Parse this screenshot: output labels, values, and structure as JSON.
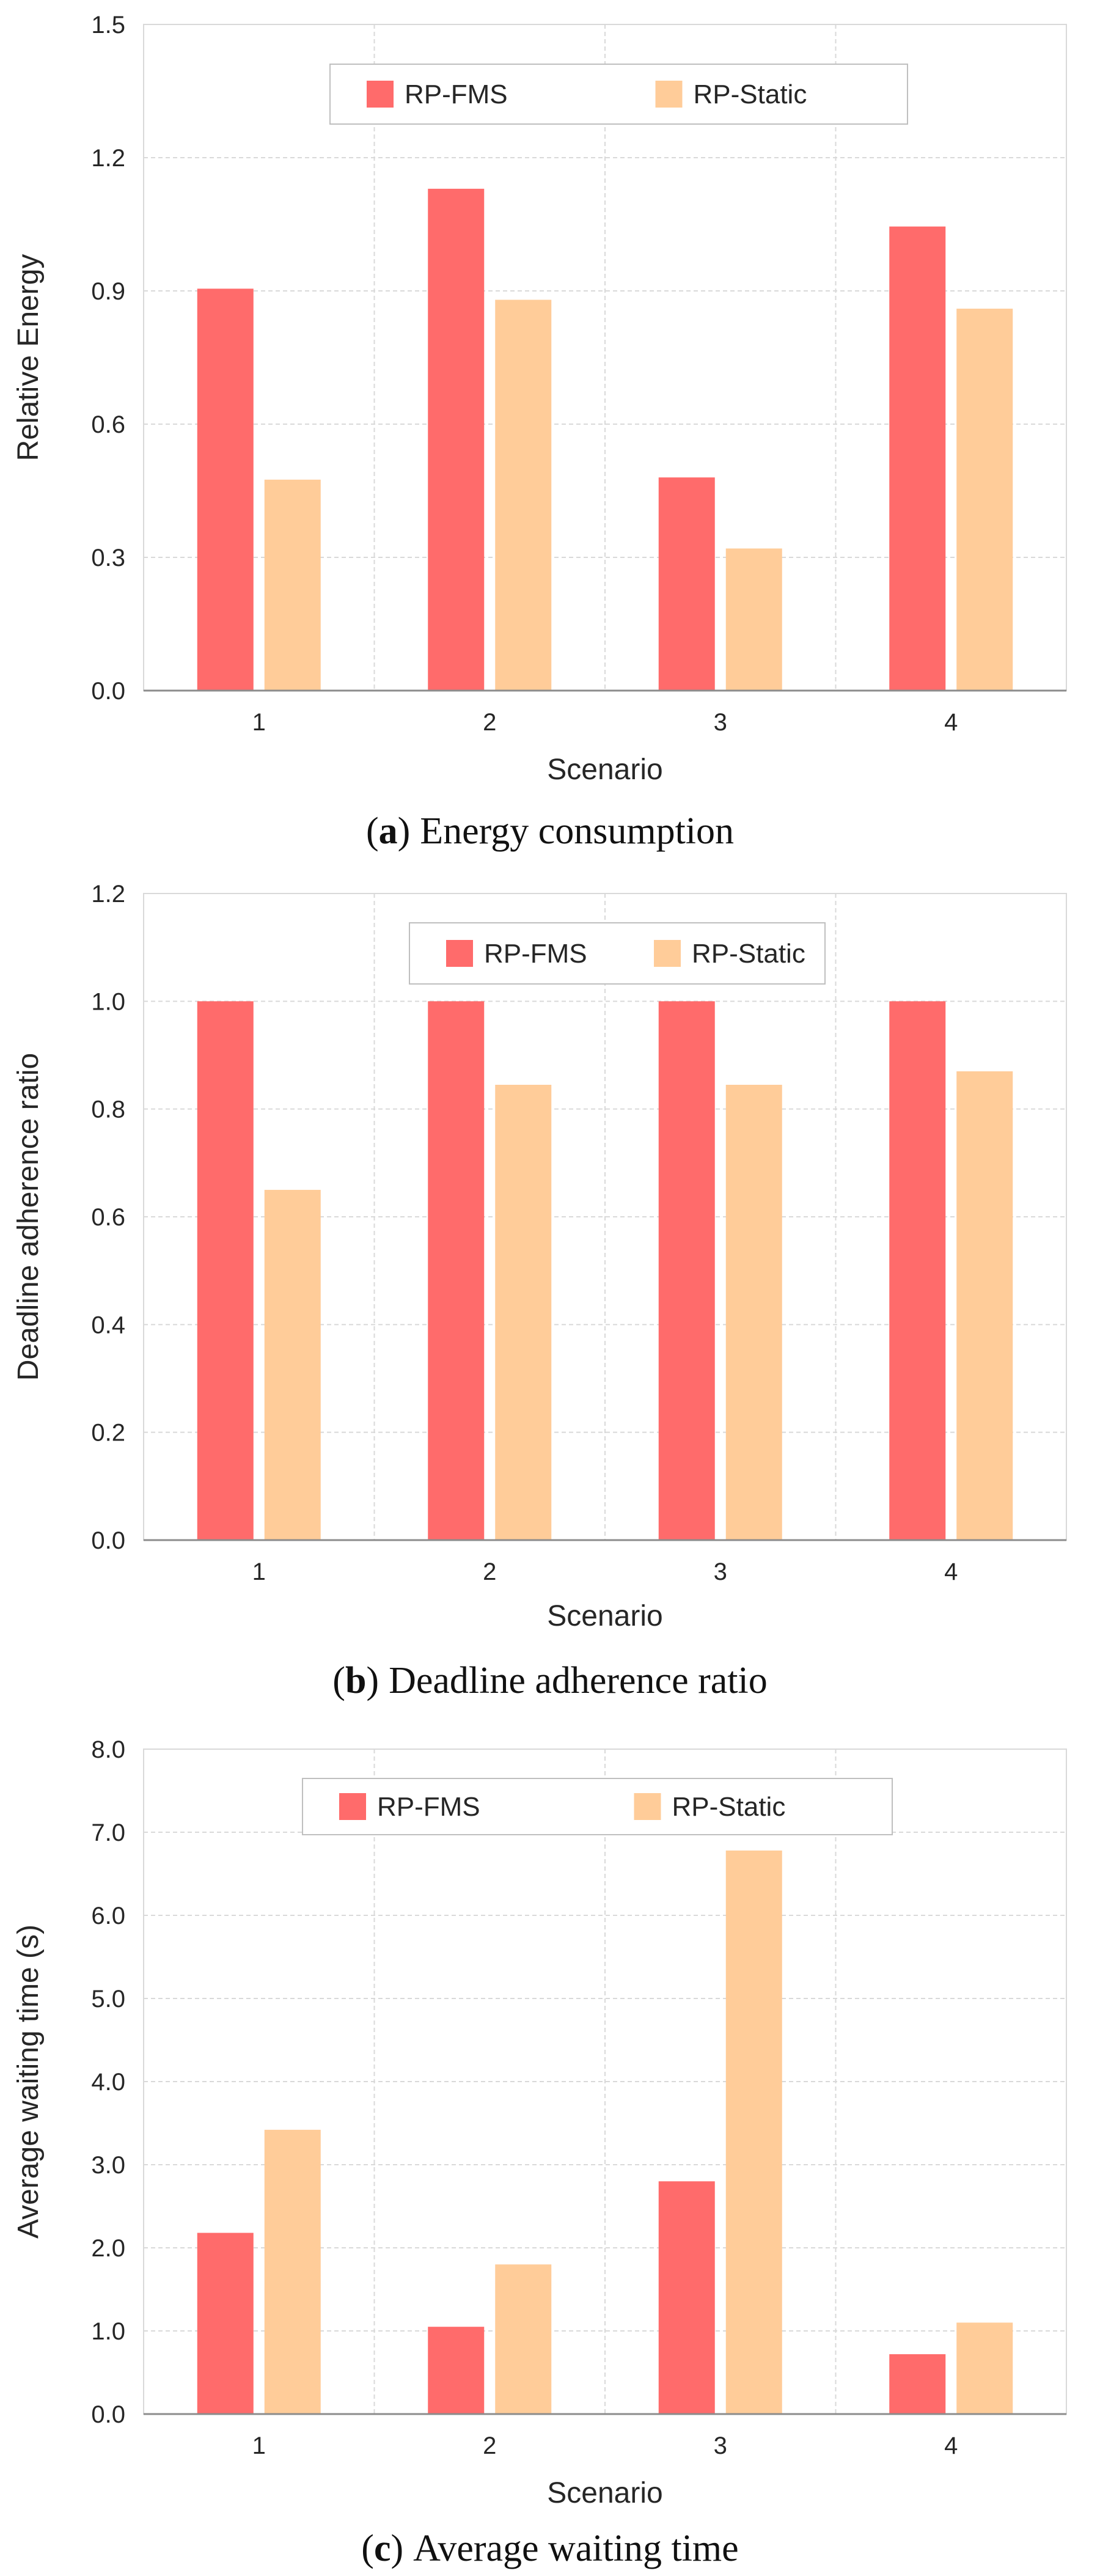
{
  "colors": {
    "rp_fms": "#FF6B6B",
    "rp_static": "#FFCC99",
    "grid": "#D9D9D9",
    "axis": "#8C8C8C",
    "text": "#262626"
  },
  "chart_data": [
    {
      "type": "bar",
      "panel": "a",
      "caption_letter": "a",
      "caption_text": "Energy consumption",
      "caption_open": "(",
      "caption_close": ")",
      "xlabel": "Scenario",
      "ylabel": "Relative Energy",
      "categories": [
        "1",
        "2",
        "3",
        "4"
      ],
      "ylim": [
        0,
        1.5
      ],
      "yticks": [
        "0.0",
        "0.3",
        "0.6",
        "0.9",
        "1.2",
        "1.5"
      ],
      "grid": true,
      "legend_position": "top-center",
      "series": [
        {
          "name": "RP-FMS",
          "color": "#FF6B6B",
          "values": [
            0.905,
            1.13,
            0.48,
            1.045
          ]
        },
        {
          "name": "RP-Static",
          "color": "#FFCC99",
          "values": [
            0.475,
            0.88,
            0.32,
            0.86
          ]
        }
      ]
    },
    {
      "type": "bar",
      "panel": "b",
      "caption_letter": "b",
      "caption_text": "Deadline adherence ratio",
      "caption_open": "(",
      "caption_close": ")",
      "xlabel": "Scenario",
      "ylabel": "Deadline adherence ratio",
      "categories": [
        "1",
        "2",
        "3",
        "4"
      ],
      "ylim": [
        0,
        1.2
      ],
      "yticks": [
        "0.0",
        "0.2",
        "0.4",
        "0.6",
        "0.8",
        "1.0",
        "1.2"
      ],
      "grid": true,
      "legend_position": "top-center",
      "series": [
        {
          "name": "RP-FMS",
          "color": "#FF6B6B",
          "values": [
            1.0,
            1.0,
            1.0,
            1.0
          ]
        },
        {
          "name": "RP-Static",
          "color": "#FFCC99",
          "values": [
            0.65,
            0.845,
            0.845,
            0.87
          ]
        }
      ]
    },
    {
      "type": "bar",
      "panel": "c",
      "caption_letter": "c",
      "caption_text": "Average waiting time",
      "caption_open": "(",
      "caption_close": ")",
      "xlabel": "Scenario",
      "ylabel": "Average waiting time (s)",
      "categories": [
        "1",
        "2",
        "3",
        "4"
      ],
      "ylim": [
        0,
        8.0
      ],
      "yticks": [
        "0.0",
        "1.0",
        "2.0",
        "3.0",
        "4.0",
        "5.0",
        "6.0",
        "7.0",
        "8.0"
      ],
      "grid": true,
      "legend_position": "top-center",
      "series": [
        {
          "name": "RP-FMS",
          "color": "#FF6B6B",
          "values": [
            2.18,
            1.05,
            2.8,
            0.72
          ]
        },
        {
          "name": "RP-Static",
          "color": "#FFCC99",
          "values": [
            3.42,
            1.8,
            6.78,
            1.1
          ]
        }
      ]
    }
  ]
}
